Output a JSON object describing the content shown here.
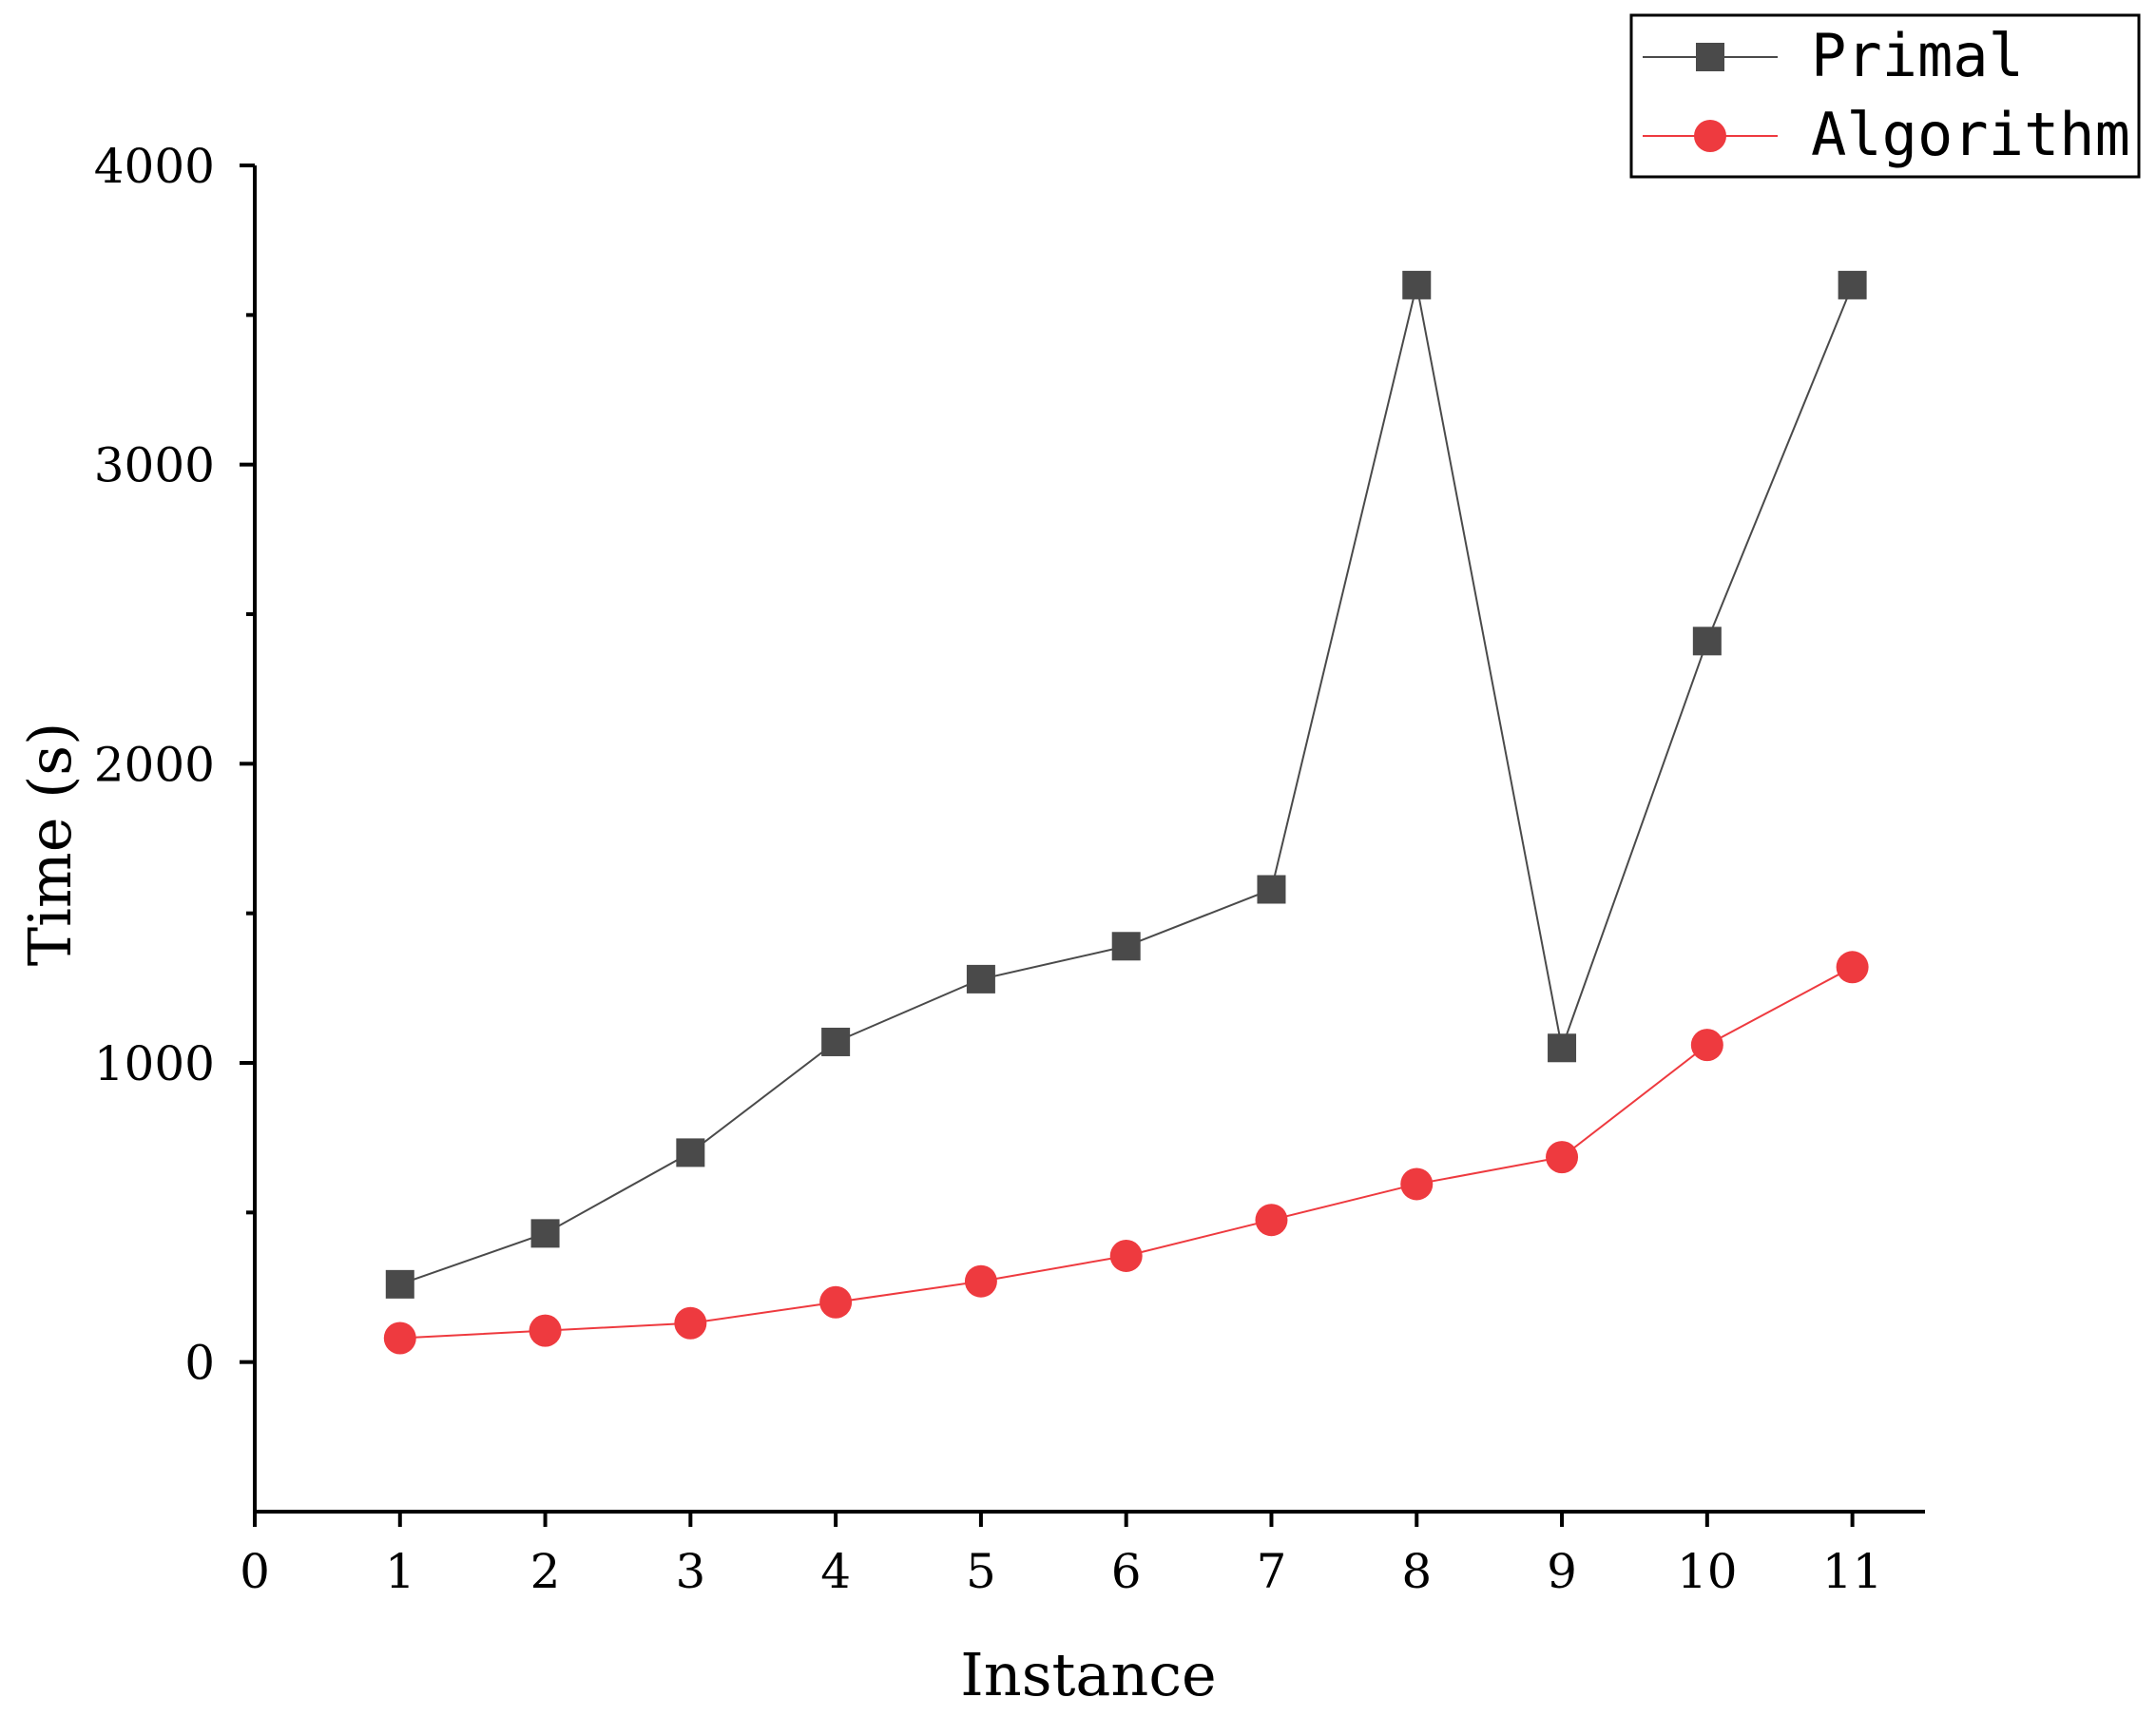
{
  "chart_data": {
    "type": "line",
    "xlabel": "Instance",
    "ylabel": "Time (s)",
    "xlim": [
      0,
      11.5
    ],
    "ylim": [
      -500,
      4000
    ],
    "x_ticks": [
      0,
      1,
      2,
      3,
      4,
      5,
      6,
      7,
      8,
      9,
      10,
      11
    ],
    "y_ticks": [
      0,
      1000,
      2000,
      3000,
      4000
    ],
    "y_minor_ticks": [
      500,
      1500,
      2500,
      3500
    ],
    "grid": false,
    "legend_position": "top-right",
    "x": [
      1,
      2,
      3,
      4,
      5,
      6,
      7,
      8,
      9,
      10,
      11
    ],
    "series": [
      {
        "name": "Primal",
        "color": "#4a4a4a",
        "marker": "square",
        "values": [
          260,
          430,
          700,
          1070,
          1280,
          1390,
          1580,
          3600,
          1050,
          2410,
          3600
        ]
      },
      {
        "name": "Algorithm",
        "color": "#ee3a3f",
        "marker": "circle",
        "values": [
          80,
          105,
          130,
          200,
          270,
          355,
          475,
          595,
          685,
          1060,
          1320
        ]
      }
    ]
  }
}
